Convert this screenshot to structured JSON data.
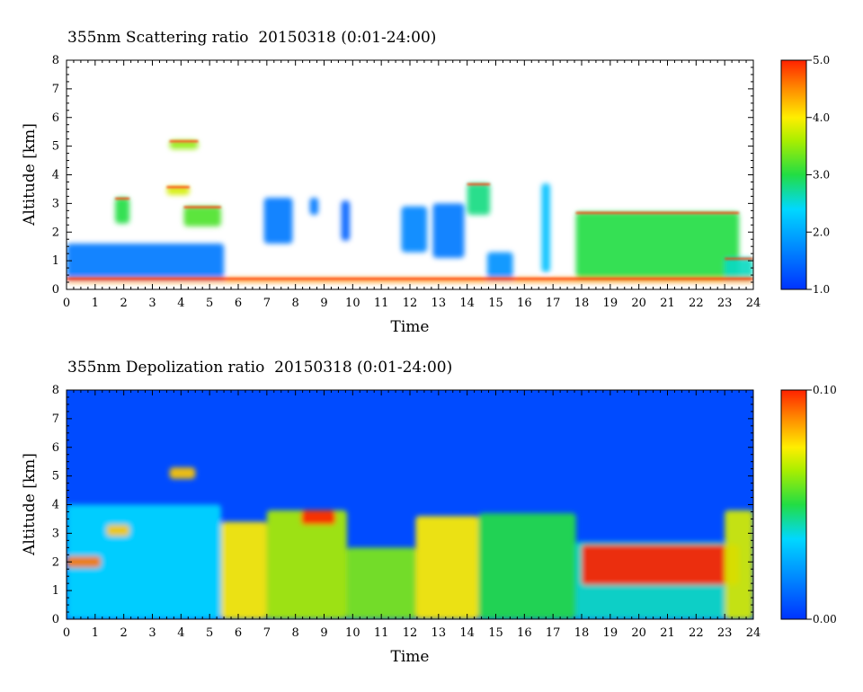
{
  "chart_data": [
    {
      "type": "heatmap",
      "title": "355nm Scattering ratio  20150318 (0:01-24:00)",
      "xlabel": "Time",
      "ylabel": "Altitude [km]",
      "xlim": [
        0,
        24
      ],
      "ylim": [
        0,
        8
      ],
      "x_ticks": [
        "0",
        "1",
        "2",
        "3",
        "4",
        "5",
        "6",
        "7",
        "8",
        "9",
        "10",
        "11",
        "12",
        "13",
        "14",
        "15",
        "16",
        "17",
        "18",
        "19",
        "20",
        "21",
        "22",
        "23",
        "24"
      ],
      "y_ticks": [
        "0",
        "1",
        "2",
        "3",
        "4",
        "5",
        "6",
        "7",
        "8"
      ],
      "colorbar": {
        "min": 1.0,
        "max": 5.0,
        "labels": [
          "1.0",
          "2.0",
          "3.0",
          "4.0",
          "5.0"
        ],
        "colormap": "jet"
      },
      "background_color": "#ffffff",
      "features": [
        {
          "t0": 0.0,
          "t1": 5.5,
          "a0": 0.3,
          "a1": 1.6,
          "value": 1.6
        },
        {
          "t0": 1.7,
          "t1": 2.2,
          "a0": 2.3,
          "a1": 3.2,
          "value": 3.0
        },
        {
          "t0": 3.6,
          "t1": 4.6,
          "a0": 4.9,
          "a1": 5.2,
          "value": 3.5
        },
        {
          "t0": 3.5,
          "t1": 4.3,
          "a0": 3.3,
          "a1": 3.6,
          "value": 3.8
        },
        {
          "t0": 4.1,
          "t1": 5.4,
          "a0": 2.2,
          "a1": 2.9,
          "value": 3.2
        },
        {
          "t0": 6.9,
          "t1": 7.9,
          "a0": 1.6,
          "a1": 3.2,
          "value": 1.6
        },
        {
          "t0": 8.5,
          "t1": 8.8,
          "a0": 2.6,
          "a1": 3.2,
          "value": 1.6
        },
        {
          "t0": 9.6,
          "t1": 9.9,
          "a0": 1.7,
          "a1": 3.1,
          "value": 1.4
        },
        {
          "t0": 11.7,
          "t1": 12.6,
          "a0": 1.3,
          "a1": 2.9,
          "value": 1.7
        },
        {
          "t0": 12.8,
          "t1": 13.9,
          "a0": 1.1,
          "a1": 3.0,
          "value": 1.6
        },
        {
          "t0": 14.0,
          "t1": 14.8,
          "a0": 2.6,
          "a1": 3.7,
          "value": 2.8
        },
        {
          "t0": 14.7,
          "t1": 15.6,
          "a0": 0.3,
          "a1": 1.3,
          "value": 1.8
        },
        {
          "t0": 16.6,
          "t1": 16.9,
          "a0": 0.6,
          "a1": 3.7,
          "value": 2.2
        },
        {
          "t0": 17.8,
          "t1": 23.5,
          "a0": 0.4,
          "a1": 2.7,
          "value": 3.0
        },
        {
          "t0": 23.0,
          "t1": 24.0,
          "a0": 0.3,
          "a1": 1.1,
          "value": 2.6
        },
        {
          "t0": 0.0,
          "t1": 24.0,
          "a0": 0.25,
          "a1": 0.4,
          "value": 4.5
        }
      ]
    },
    {
      "type": "heatmap",
      "title": "355nm Depolization ratio  20150318 (0:01-24:00)",
      "xlabel": "Time",
      "ylabel": "Altitude [km]",
      "xlim": [
        0,
        24
      ],
      "ylim": [
        0,
        8
      ],
      "x_ticks": [
        "0",
        "1",
        "2",
        "3",
        "4",
        "5",
        "6",
        "7",
        "8",
        "9",
        "10",
        "11",
        "12",
        "13",
        "14",
        "15",
        "16",
        "17",
        "18",
        "19",
        "20",
        "21",
        "22",
        "23",
        "24"
      ],
      "y_ticks": [
        "0",
        "1",
        "2",
        "3",
        "4",
        "5",
        "6",
        "7",
        "8"
      ],
      "colorbar": {
        "min": 0.0,
        "max": 0.1,
        "labels": [
          "0.00",
          "0.10"
        ],
        "colormap": "jet"
      },
      "background_value": 0.005,
      "features": [
        {
          "t0": 0.0,
          "t1": 5.4,
          "a0": 0.0,
          "a1": 4.0,
          "value": 0.035
        },
        {
          "t0": 0.0,
          "t1": 1.2,
          "a0": 1.8,
          "a1": 2.2,
          "value": 0.09
        },
        {
          "t0": 1.4,
          "t1": 2.2,
          "a0": 2.9,
          "a1": 3.3,
          "value": 0.08
        },
        {
          "t0": 3.6,
          "t1": 4.5,
          "a0": 4.9,
          "a1": 5.3,
          "value": 0.08
        },
        {
          "t0": 5.4,
          "t1": 7.0,
          "a0": 0.0,
          "a1": 3.4,
          "value": 0.075
        },
        {
          "t0": 7.0,
          "t1": 9.8,
          "a0": 0.0,
          "a1": 3.8,
          "value": 0.065
        },
        {
          "t0": 8.2,
          "t1": 9.4,
          "a0": 3.3,
          "a1": 3.8,
          "value": 0.1
        },
        {
          "t0": 9.8,
          "t1": 12.2,
          "a0": 0.0,
          "a1": 2.5,
          "value": 0.06
        },
        {
          "t0": 12.2,
          "t1": 14.4,
          "a0": 0.0,
          "a1": 3.6,
          "value": 0.075
        },
        {
          "t0": 14.4,
          "t1": 17.8,
          "a0": 0.0,
          "a1": 3.7,
          "value": 0.05
        },
        {
          "t0": 17.8,
          "t1": 23.0,
          "a0": 0.0,
          "a1": 2.7,
          "value": 0.04
        },
        {
          "t0": 18.0,
          "t1": 23.5,
          "a0": 1.2,
          "a1": 2.6,
          "value": 0.1
        },
        {
          "t0": 23.0,
          "t1": 24.0,
          "a0": 0.0,
          "a1": 3.8,
          "value": 0.07
        }
      ]
    }
  ]
}
